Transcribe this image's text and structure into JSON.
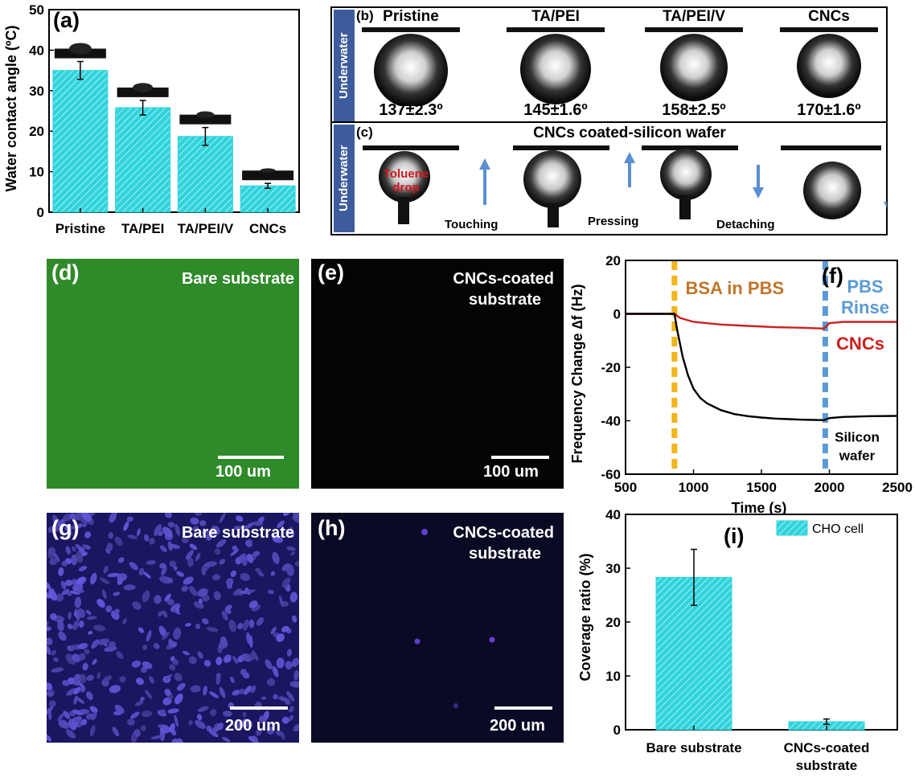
{
  "panel_a": {
    "letter": "(a)",
    "chart_data": {
      "type": "bar",
      "categories": [
        "Pristine",
        "TA/PEI",
        "TA/PEI/V",
        "CNCs"
      ],
      "values": [
        35,
        25.8,
        18.7,
        6.5
      ],
      "errors": [
        2.2,
        1.8,
        2.2,
        0.6
      ],
      "ylabel": "Water contact angle (ºC)",
      "ylim": [
        0,
        50
      ],
      "yticks": [
        "0",
        "10",
        "20",
        "30",
        "40",
        "50"
      ],
      "bar_color": "#2fd4dc",
      "hatch": "diagonal"
    }
  },
  "panel_b": {
    "letter": "(b)",
    "side_label": "Underwater",
    "items": [
      {
        "name": "Pristine",
        "angle": "137±2.3º"
      },
      {
        "name": "TA/PEI",
        "angle": "145±1.6º"
      },
      {
        "name": "TA/PEI/V",
        "angle": "158±2.5º"
      },
      {
        "name": "CNCs",
        "angle": "170±1.6º"
      }
    ]
  },
  "panel_c": {
    "letter": "(c)",
    "side_label": "Underwater",
    "title": "CNCs coated-silicon wafer",
    "drop_label": "Toluene drop",
    "steps": [
      "Touching",
      "Pressing",
      "Detaching"
    ],
    "arrow_color": "#5b8fd1"
  },
  "panel_d": {
    "letter": "(d)",
    "label": "Bare substrate",
    "scale": "100 um",
    "bg": "#2f8a2a"
  },
  "panel_e": {
    "letter": "(e)",
    "label_line1": "CNCs-coated",
    "label_line2": "substrate",
    "scale": "100 um",
    "bg": "#030503"
  },
  "panel_g": {
    "letter": "(g)",
    "label": "Bare substrate",
    "scale": "200 um",
    "bg": "#1a1660"
  },
  "panel_h": {
    "letter": "(h)",
    "label_line1": "CNCs-coated",
    "label_line2": "substrate",
    "scale": "200 um",
    "bg": "#0a0a24"
  },
  "panel_f": {
    "letter": "(f)",
    "chart_data": {
      "type": "line",
      "xlabel": "Time (s)",
      "ylabel": "Frequency Change ∆f (Hz)",
      "xlim": [
        500,
        2500
      ],
      "ylim": [
        -60,
        20
      ],
      "xticks": [
        "500",
        "1000",
        "1500",
        "2000",
        "2500"
      ],
      "yticks": [
        "-60",
        "-40",
        "-20",
        "0",
        "20"
      ],
      "annotations": {
        "bsa": "BSA in PBS",
        "rinse_line1": "PBS",
        "rinse_line2": "Rinse",
        "cncs": "CNCs",
        "silicon_line1": "Silicon",
        "silicon_line2": "wafer"
      },
      "vlines": [
        {
          "x": 860,
          "color": "#f2b51a"
        },
        {
          "x": 1970,
          "color": "#5b9bd5"
        }
      ],
      "series": [
        {
          "name": "CNCs",
          "color": "#cc1f1f",
          "x": [
            500,
            860,
            900,
            1000,
            1200,
            1400,
            1600,
            1800,
            1960,
            2000,
            2100,
            2300,
            2500
          ],
          "y": [
            0,
            0,
            -1.5,
            -3,
            -4,
            -4.5,
            -5,
            -5.2,
            -5.5,
            -3.5,
            -3,
            -3,
            -3
          ]
        },
        {
          "name": "Silicon wafer",
          "color": "#000000",
          "x": [
            500,
            860,
            880,
            920,
            960,
            1000,
            1050,
            1100,
            1200,
            1300,
            1400,
            1500,
            1600,
            1700,
            1800,
            1900,
            1960,
            2000,
            2100,
            2300,
            2500
          ],
          "y": [
            0,
            0,
            -6,
            -16,
            -23,
            -28,
            -31.5,
            -33.5,
            -36,
            -37.5,
            -38.3,
            -38.8,
            -39.2,
            -39.4,
            -39.6,
            -39.7,
            -39.8,
            -39,
            -38.6,
            -38.3,
            -38.2
          ]
        }
      ]
    }
  },
  "panel_i": {
    "letter": "(i)",
    "chart_data": {
      "type": "bar",
      "categories": [
        "Bare substrate",
        "CNCs-coated substrate"
      ],
      "category_lines": [
        [
          "Bare substrate"
        ],
        [
          "CNCs-coated",
          "substrate"
        ]
      ],
      "values": [
        28.3,
        1.5
      ],
      "errors": [
        5.2,
        0.5
      ],
      "ylabel": "Coverage  ratio (%)",
      "ylim": [
        0,
        40
      ],
      "yticks": [
        "0",
        "10",
        "20",
        "30",
        "40"
      ],
      "legend": "CHO cell",
      "legend_position": "top-right",
      "bar_color": "#2fd4dc"
    }
  }
}
